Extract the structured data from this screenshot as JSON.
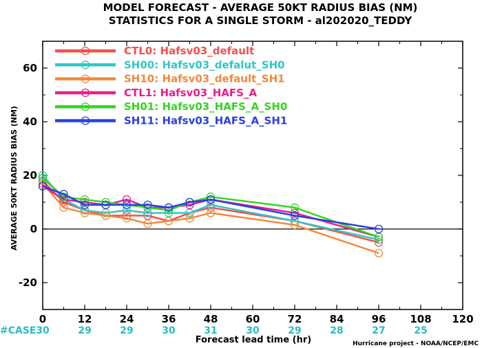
{
  "chart_data": {
    "type": "line",
    "title": "MODEL FORECAST - AVERAGE 50KT RADIUS BIAS (NM)",
    "subtitle": "STATISTICS FOR A SINGLE STORM - al202020_TEDDY",
    "xlabel": "Forecast lead time (hr)",
    "ylabel": "AVERAGE 50KT RADIUS BIAS (NM)",
    "xlim": [
      0,
      120
    ],
    "ylim": [
      -30,
      70
    ],
    "xticks": [
      0,
      12,
      24,
      36,
      48,
      60,
      72,
      84,
      96,
      108,
      120
    ],
    "yticks": [
      -20,
      0,
      20,
      40,
      60
    ],
    "grid": false,
    "legend_position": "top-left",
    "credit": "Hurricane project - NOAA/NCEP/EMC",
    "case_label": "#CASE",
    "case_counts": [
      {
        "x": 0,
        "n": "30"
      },
      {
        "x": 12,
        "n": "29"
      },
      {
        "x": 24,
        "n": "29"
      },
      {
        "x": 36,
        "n": "30"
      },
      {
        "x": 48,
        "n": "31"
      },
      {
        "x": 60,
        "n": "30"
      },
      {
        "x": 72,
        "n": "29"
      },
      {
        "x": 84,
        "n": "28"
      },
      {
        "x": 96,
        "n": "27"
      },
      {
        "x": 108,
        "n": "25"
      }
    ],
    "series": [
      {
        "name": "CTL0: Hafsv03_default",
        "color": "#f2504a",
        "x": [
          0,
          6,
          12,
          18,
          24,
          30,
          36,
          42,
          48,
          72,
          96
        ],
        "y": [
          18,
          10,
          7,
          5,
          5,
          5,
          3,
          6,
          8,
          3,
          -5
        ]
      },
      {
        "name": "SH00: Hafsv03_defalut_SH0",
        "color": "#31c7c4",
        "x": [
          0,
          6,
          12,
          18,
          24,
          30,
          36,
          42,
          48,
          72,
          96
        ],
        "y": [
          20,
          11,
          7,
          6,
          7,
          6,
          6,
          6,
          9,
          3,
          -4
        ]
      },
      {
        "name": "SH10: Hafsv03_default_SH1",
        "color": "#f08a3c",
        "x": [
          0,
          6,
          12,
          18,
          24,
          30,
          36,
          42,
          48,
          72,
          96
        ],
        "y": [
          17,
          8,
          6,
          5,
          4,
          2,
          3,
          4,
          6,
          1.5,
          -9
        ]
      },
      {
        "name": "CTL1: Hafsv03_HAFS_A",
        "color": "#e61f8a",
        "x": [
          0,
          6,
          12,
          18,
          24,
          30,
          36,
          42,
          48,
          72,
          96
        ],
        "y": [
          16,
          11,
          10,
          9,
          11,
          8,
          8,
          9,
          11,
          6,
          -3
        ]
      },
      {
        "name": "SH01: Hafsv03_HAFS_A_SH0",
        "color": "#33d620",
        "x": [
          0,
          6,
          12,
          18,
          24,
          30,
          36,
          42,
          48,
          72,
          96
        ],
        "y": [
          19,
          12,
          11,
          10,
          9,
          8,
          7,
          10,
          12,
          8,
          -3
        ]
      },
      {
        "name": "SH11: Hafsv03_HAFS_A_SH1",
        "color": "#2b40e3",
        "x": [
          0,
          6,
          12,
          18,
          24,
          30,
          36,
          42,
          48,
          72,
          96
        ],
        "y": [
          16,
          13,
          9,
          9,
          9,
          9,
          8,
          10,
          11,
          5,
          0
        ]
      }
    ]
  }
}
